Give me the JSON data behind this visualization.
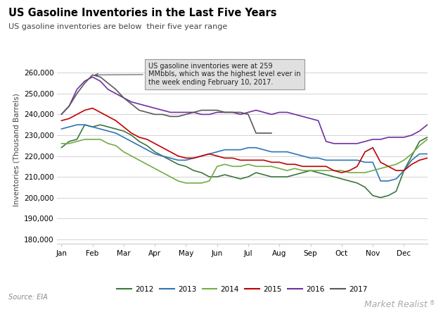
{
  "title": "US Gasoline Inventories in the Last Five Years",
  "subtitle": "US gasoline inventories are below  their five year range",
  "ylabel": "Inventories (Thousand Barrels)",
  "source": "Source: EIA",
  "watermark": "Market Realist",
  "ylim": [
    178000,
    268000
  ],
  "yticks": [
    180000,
    190000,
    200000,
    210000,
    220000,
    230000,
    240000,
    250000,
    260000
  ],
  "months": [
    "Jan",
    "Feb",
    "Mar",
    "Apr",
    "May",
    "Jun",
    "Jul",
    "Aug",
    "Sep",
    "Oct",
    "Nov",
    "Dec"
  ],
  "annotation_text": "US gasoline inventories were at 259\nMMbbls, which was the highest level ever in\nthe week ending February 10, 2017.",
  "series": {
    "2012": {
      "color": "#3c763d",
      "data_x": [
        0,
        0.25,
        0.5,
        0.75,
        1.0,
        1.25,
        1.5,
        1.75,
        2.0,
        2.25,
        2.5,
        2.75,
        3.0,
        3.25,
        3.5,
        3.75,
        4.0,
        4.25,
        4.5,
        4.75,
        5.0,
        5.25,
        5.5,
        5.75,
        6.0,
        6.25,
        6.5,
        6.75,
        7.0,
        7.25,
        7.5,
        7.75,
        8.0,
        8.25,
        8.5,
        8.75,
        9.0,
        9.25,
        9.5,
        9.75,
        10.0,
        10.25,
        10.5,
        10.75,
        11.0,
        11.25,
        11.5,
        11.75
      ],
      "data_y": [
        224000,
        227000,
        228000,
        235000,
        234000,
        235000,
        234000,
        233000,
        232000,
        230000,
        227000,
        225000,
        222000,
        220000,
        218000,
        216000,
        215000,
        213000,
        212000,
        210000,
        210000,
        211000,
        210000,
        209000,
        210000,
        212000,
        211000,
        210000,
        210000,
        210000,
        211000,
        212000,
        213000,
        212000,
        211000,
        210000,
        209000,
        208000,
        207000,
        205000,
        201000,
        200000,
        201000,
        203000,
        213000,
        220000,
        227000,
        229000
      ]
    },
    "2013": {
      "color": "#2e75b6",
      "data_x": [
        0,
        0.25,
        0.5,
        0.75,
        1.0,
        1.25,
        1.5,
        1.75,
        2.0,
        2.25,
        2.5,
        2.75,
        3.0,
        3.25,
        3.5,
        3.75,
        4.0,
        4.25,
        4.5,
        4.75,
        5.0,
        5.25,
        5.5,
        5.75,
        6.0,
        6.25,
        6.5,
        6.75,
        7.0,
        7.25,
        7.5,
        7.75,
        8.0,
        8.25,
        8.5,
        8.75,
        9.0,
        9.25,
        9.5,
        9.75,
        10.0,
        10.25,
        10.5,
        10.75,
        11.0,
        11.25,
        11.5,
        11.75
      ],
      "data_y": [
        233000,
        234000,
        235000,
        235000,
        234000,
        233000,
        232000,
        231000,
        229000,
        227000,
        225000,
        223000,
        221000,
        220000,
        219000,
        218000,
        218000,
        219000,
        220000,
        221000,
        222000,
        223000,
        223000,
        223000,
        224000,
        224000,
        223000,
        222000,
        222000,
        222000,
        221000,
        220000,
        219000,
        219000,
        218000,
        218000,
        218000,
        218000,
        218000,
        217000,
        217000,
        208000,
        208000,
        209000,
        213000,
        218000,
        221000,
        221000
      ]
    },
    "2014": {
      "color": "#70ad47",
      "data_x": [
        0,
        0.25,
        0.5,
        0.75,
        1.0,
        1.25,
        1.5,
        1.75,
        2.0,
        2.25,
        2.5,
        2.75,
        3.0,
        3.25,
        3.5,
        3.75,
        4.0,
        4.25,
        4.5,
        4.75,
        5.0,
        5.25,
        5.5,
        5.75,
        6.0,
        6.25,
        6.5,
        6.75,
        7.0,
        7.25,
        7.5,
        7.75,
        8.0,
        8.25,
        8.5,
        8.75,
        9.0,
        9.25,
        9.5,
        9.75,
        10.0,
        10.25,
        10.5,
        10.75,
        11.0,
        11.25,
        11.5,
        11.75
      ],
      "data_y": [
        226000,
        226000,
        227000,
        228000,
        228000,
        228000,
        226000,
        225000,
        222000,
        220000,
        218000,
        216000,
        214000,
        212000,
        210000,
        208000,
        207000,
        207000,
        207000,
        208000,
        215000,
        216000,
        215000,
        215000,
        216000,
        215000,
        215000,
        215000,
        214000,
        213000,
        214000,
        213000,
        213000,
        213000,
        213000,
        213000,
        213000,
        212000,
        212000,
        212000,
        213000,
        214000,
        215000,
        216000,
        218000,
        221000,
        225000,
        228000
      ]
    },
    "2015": {
      "color": "#c00000",
      "data_x": [
        0,
        0.25,
        0.5,
        0.75,
        1.0,
        1.25,
        1.5,
        1.75,
        2.0,
        2.25,
        2.5,
        2.75,
        3.0,
        3.25,
        3.5,
        3.75,
        4.0,
        4.25,
        4.5,
        4.75,
        5.0,
        5.25,
        5.5,
        5.75,
        6.0,
        6.25,
        6.5,
        6.75,
        7.0,
        7.25,
        7.5,
        7.75,
        8.0,
        8.25,
        8.5,
        8.75,
        9.0,
        9.25,
        9.5,
        9.75,
        10.0,
        10.25,
        10.5,
        10.75,
        11.0,
        11.25,
        11.5,
        11.75
      ],
      "data_y": [
        237000,
        238000,
        240000,
        242000,
        243000,
        241000,
        239000,
        237000,
        234000,
        231000,
        229000,
        228000,
        226000,
        224000,
        222000,
        220000,
        219000,
        219000,
        220000,
        221000,
        220000,
        219000,
        219000,
        218000,
        218000,
        218000,
        218000,
        217000,
        217000,
        216000,
        216000,
        215000,
        215000,
        215000,
        215000,
        213000,
        212000,
        213000,
        215000,
        222000,
        224000,
        217000,
        215000,
        213000,
        213000,
        216000,
        218000,
        219000
      ]
    },
    "2016": {
      "color": "#7030a0",
      "data_x": [
        0,
        0.25,
        0.5,
        0.75,
        1.0,
        1.25,
        1.5,
        1.75,
        2.0,
        2.25,
        2.5,
        2.75,
        3.0,
        3.25,
        3.5,
        3.75,
        4.0,
        4.25,
        4.5,
        4.75,
        5.0,
        5.25,
        5.5,
        5.75,
        6.0,
        6.25,
        6.5,
        6.75,
        7.0,
        7.25,
        7.5,
        7.75,
        8.0,
        8.25,
        8.5,
        8.75,
        9.0,
        9.25,
        9.5,
        9.75,
        10.0,
        10.25,
        10.5,
        10.75,
        11.0,
        11.25,
        11.5,
        11.75
      ],
      "data_y": [
        240000,
        244000,
        252000,
        256000,
        258000,
        256000,
        252000,
        250000,
        248000,
        246000,
        245000,
        244000,
        243000,
        242000,
        241000,
        241000,
        241000,
        241000,
        240000,
        240000,
        241000,
        241000,
        241000,
        240000,
        241000,
        242000,
        241000,
        240000,
        241000,
        241000,
        240000,
        239000,
        238000,
        237000,
        227000,
        226000,
        226000,
        226000,
        226000,
        227000,
        228000,
        228000,
        229000,
        229000,
        229000,
        230000,
        232000,
        235000
      ]
    },
    "2017": {
      "color": "#595959",
      "data_x": [
        0,
        0.25,
        0.5,
        0.75,
        1.0,
        1.25,
        1.5,
        1.75,
        2.0,
        2.25,
        2.5,
        2.75,
        3.0,
        3.25,
        3.5,
        3.75,
        4.0,
        4.25,
        4.5,
        4.75,
        5.0,
        5.25,
        5.5,
        5.75,
        6.0,
        6.25,
        6.5,
        6.75
      ],
      "data_y": [
        240000,
        244000,
        250000,
        255000,
        259000,
        258000,
        255000,
        252000,
        248000,
        245000,
        242000,
        241000,
        240000,
        240000,
        239000,
        239000,
        240000,
        241000,
        242000,
        242000,
        242000,
        241000,
        241000,
        241000,
        240000,
        231000,
        231000,
        231000
      ]
    }
  }
}
